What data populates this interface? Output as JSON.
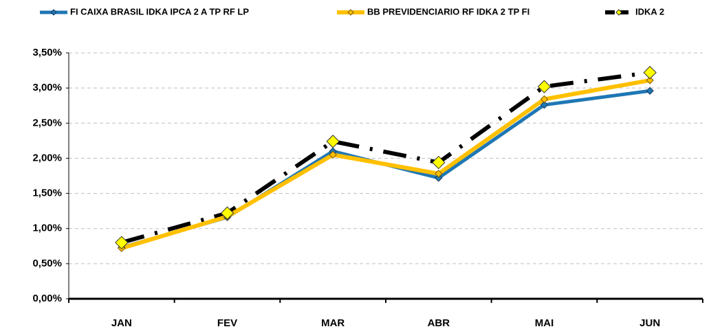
{
  "chart_data": {
    "type": "line",
    "categories": [
      "JAN",
      "FEV",
      "MAR",
      "ABR",
      "MAI",
      "JUN"
    ],
    "series": [
      {
        "name": "FI CAIXA BRASIL IDKA IPCA 2 A TP RF LP",
        "color": "#1f77b4",
        "values": [
          0.73,
          1.16,
          2.1,
          1.72,
          2.76,
          2.96
        ]
      },
      {
        "name": "BB PREVIDENCIARIO RF IDKA 2 TP FI",
        "color": "#ffc000",
        "values": [
          0.72,
          1.17,
          2.05,
          1.78,
          2.84,
          3.11
        ]
      },
      {
        "name": "IDKA 2",
        "color": "#000000",
        "values": [
          0.8,
          1.22,
          2.24,
          1.94,
          3.02,
          3.22
        ]
      }
    ],
    "ylim": [
      0,
      3.5
    ],
    "yticks": [
      {
        "value": 0,
        "label": "0,00%"
      },
      {
        "value": 0.5,
        "label": "0,50%"
      },
      {
        "value": 1,
        "label": "1,00%"
      },
      {
        "value": 1.5,
        "label": "1,50%"
      },
      {
        "value": 2,
        "label": "2,00%"
      },
      {
        "value": 2.5,
        "label": "2,50%"
      },
      {
        "value": 3,
        "label": "3,00%"
      },
      {
        "value": 3.5,
        "label": "3,50%"
      }
    ],
    "grid": true
  }
}
